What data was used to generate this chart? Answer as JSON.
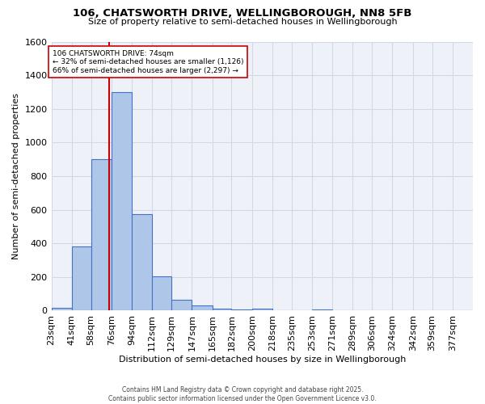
{
  "title": "106, CHATSWORTH DRIVE, WELLINGBOROUGH, NN8 5FB",
  "subtitle": "Size of property relative to semi-detached houses in Wellingborough",
  "xlabel": "Distribution of semi-detached houses by size in Wellingborough",
  "ylabel": "Number of semi-detached properties",
  "bin_labels": [
    "23sqm",
    "41sqm",
    "58sqm",
    "76sqm",
    "94sqm",
    "112sqm",
    "129sqm",
    "147sqm",
    "165sqm",
    "182sqm",
    "200sqm",
    "218sqm",
    "235sqm",
    "253sqm",
    "271sqm",
    "289sqm",
    "306sqm",
    "324sqm",
    "342sqm",
    "359sqm",
    "377sqm"
  ],
  "bin_values": [
    18,
    380,
    900,
    1300,
    575,
    205,
    65,
    30,
    12,
    5,
    12,
    0,
    0,
    8,
    0,
    0,
    0,
    0,
    0,
    0,
    0
  ],
  "bar_color": "#aec6e8",
  "bar_edge_color": "#4472c4",
  "grid_color": "#d0d8e8",
  "bg_color": "#eef2f8",
  "property_line_x": 74,
  "property_line_color": "#cc0000",
  "annotation_text": "106 CHATSWORTH DRIVE: 74sqm\n← 32% of semi-detached houses are smaller (1,126)\n66% of semi-detached houses are larger (2,297) →",
  "annotation_box_color": "#cc0000",
  "footer_text": "Contains HM Land Registry data © Crown copyright and database right 2025.\nContains public sector information licensed under the Open Government Licence v3.0.",
  "ylim": [
    0,
    1600
  ],
  "bin_edges": [
    23,
    41,
    58,
    76,
    94,
    112,
    129,
    147,
    165,
    182,
    200,
    218,
    235,
    253,
    271,
    289,
    306,
    324,
    342,
    359,
    377,
    395
  ]
}
